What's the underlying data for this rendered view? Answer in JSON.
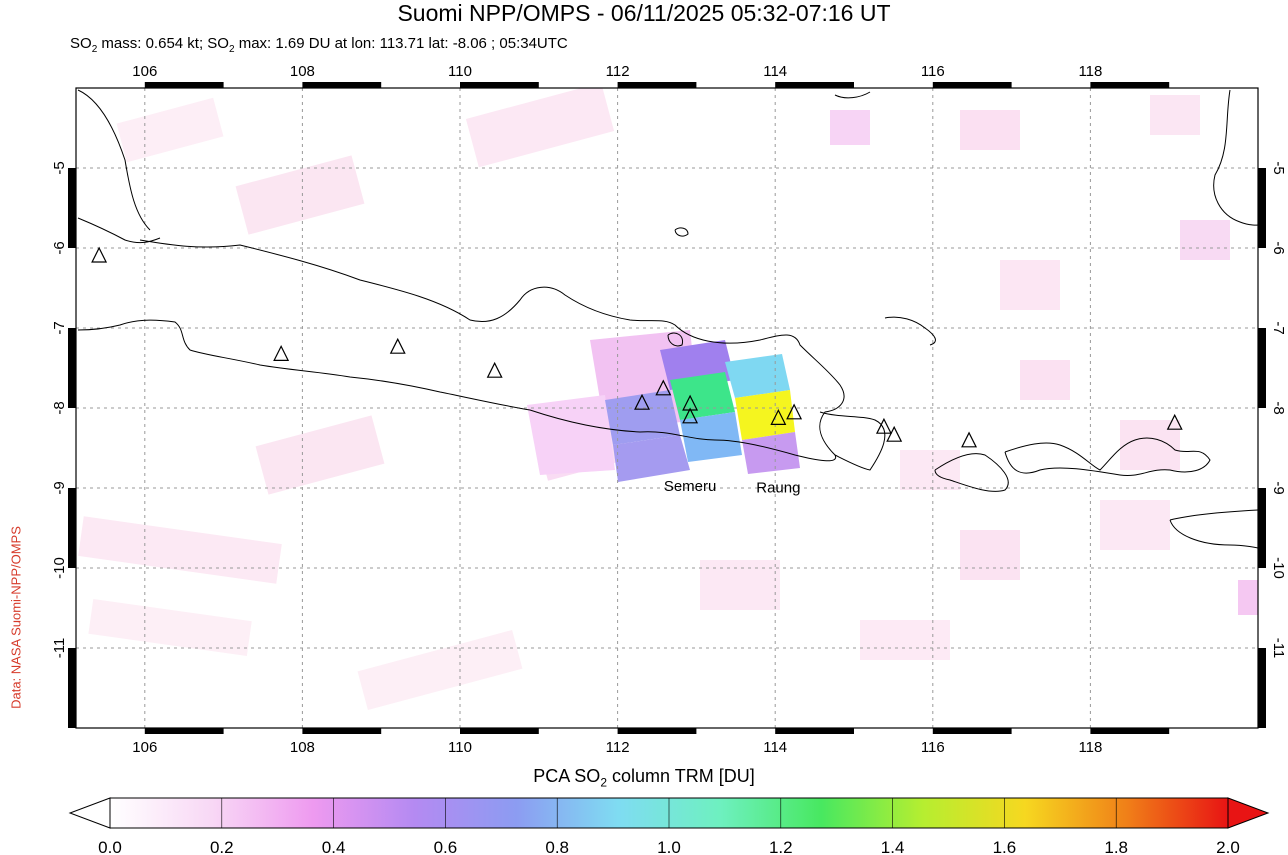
{
  "header": {
    "title": "Suomi NPP/OMPS - 06/11/2025 05:32-07:16 UT",
    "subtitle_pre": "SO",
    "subtitle_sub": "2",
    "subtitle_mid": " mass: 0.654 kt; SO",
    "subtitle_sub2": "2",
    "subtitle_post": " max: 1.69 DU at lon: 113.71 lat: -8.06 ; 05:34UTC"
  },
  "credit": "Data: NASA Suomi-NPP/OMPS",
  "map": {
    "lon_range": [
      105,
      120
    ],
    "lat_range": [
      -12,
      -4
    ],
    "lon_ticks": [
      "106",
      "108",
      "110",
      "112",
      "114",
      "116",
      "118"
    ],
    "lat_ticks": [
      "-5",
      "-6",
      "-7",
      "-8",
      "-9",
      "-10",
      "-11"
    ],
    "volcano_labels": [
      {
        "name": "Semeru",
        "lon": 112.92,
        "lat": -8.11
      },
      {
        "name": "Raung",
        "lon": 114.04,
        "lat": -8.13
      }
    ],
    "volcanoes": [
      {
        "lon": 105.42,
        "lat": -6.1
      },
      {
        "lon": 107.73,
        "lat": -7.33
      },
      {
        "lon": 109.21,
        "lat": -7.24
      },
      {
        "lon": 110.44,
        "lat": -7.54
      },
      {
        "lon": 112.31,
        "lat": -7.94
      },
      {
        "lon": 112.58,
        "lat": -7.76
      },
      {
        "lon": 112.92,
        "lat": -7.95
      },
      {
        "lon": 112.92,
        "lat": -8.11
      },
      {
        "lon": 114.04,
        "lat": -8.13
      },
      {
        "lon": 114.24,
        "lat": -8.06
      },
      {
        "lon": 115.38,
        "lat": -8.24
      },
      {
        "lon": 115.51,
        "lat": -8.34
      },
      {
        "lon": 116.46,
        "lat": -8.41
      },
      {
        "lon": 119.07,
        "lat": -8.19
      }
    ],
    "so2_pixels": [
      {
        "color": "#a59bf0",
        "lon": 112.0,
        "lat": -8.3
      },
      {
        "color": "#a59bf0",
        "lon": 112.4,
        "lat": -8.7
      },
      {
        "color": "#a080ee",
        "lon": 112.7,
        "lat": -7.65
      },
      {
        "color": "#3de58a",
        "lon": 112.8,
        "lat": -8.0
      },
      {
        "color": "#7fd8f2",
        "lon": 113.4,
        "lat": -7.75
      },
      {
        "color": "#80b8f5",
        "lon": 112.95,
        "lat": -8.35
      },
      {
        "color": "#f5f51f",
        "lon": 113.65,
        "lat": -8.1
      },
      {
        "color": "#c79af0",
        "lon": 113.6,
        "lat": -8.6
      },
      {
        "color": "#f2c2f2",
        "lon": 112.0,
        "lat": -7.5
      },
      {
        "color": "#f7d2f7",
        "lon": 111.3,
        "lat": -8.4
      }
    ]
  },
  "colorbar": {
    "label_pre": "PCA SO",
    "label_sub": "2",
    "label_post": " column TRM [DU]",
    "ticks": [
      "0.0",
      "0.2",
      "0.4",
      "0.6",
      "0.8",
      "1.0",
      "1.2",
      "1.4",
      "1.6",
      "1.8",
      "2.0"
    ],
    "min": 0.0,
    "max": 2.0,
    "colors": [
      "#ffffff",
      "#f8d8f5",
      "#ee9af0",
      "#b48af2",
      "#8c9cf2",
      "#7fdcf2",
      "#6ef0c0",
      "#48e860",
      "#b6ee30",
      "#f6d820",
      "#f08018",
      "#e81414"
    ]
  }
}
